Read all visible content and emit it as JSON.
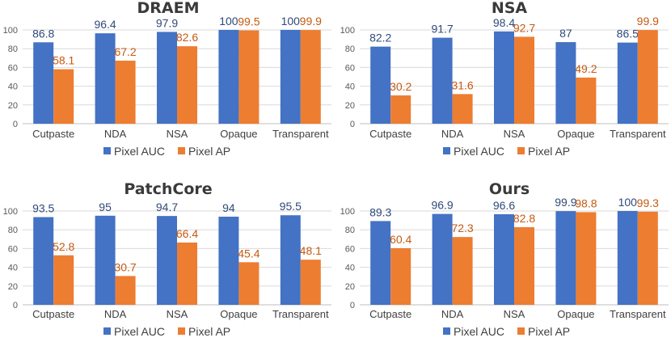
{
  "colors": {
    "auc": "#4472C4",
    "ap": "#ED7D31",
    "grid": "#d9d9d9",
    "axis": "#bfbfbf"
  },
  "chart_data": [
    {
      "type": "bar",
      "title": "DRAEM",
      "categories": [
        "Cutpaste",
        "NDA",
        "NSA",
        "Opaque",
        "Transparent"
      ],
      "ylim": [
        0,
        100
      ],
      "yticks": [
        0,
        20,
        40,
        60,
        80,
        100
      ],
      "legend_position": "bottom",
      "series": [
        {
          "name": "Pixel AUC",
          "values": [
            86.8,
            96.4,
            97.9,
            100,
            100
          ]
        },
        {
          "name": "Pixel AP",
          "values": [
            58.1,
            67.2,
            82.6,
            99.5,
            99.9
          ]
        }
      ]
    },
    {
      "type": "bar",
      "title": "NSA",
      "categories": [
        "Cutpaste",
        "NDA",
        "NSA",
        "Opaque",
        "Transparent"
      ],
      "ylim": [
        0,
        100
      ],
      "yticks": [
        0,
        20,
        40,
        60,
        80,
        100
      ],
      "legend_position": "bottom",
      "series": [
        {
          "name": "Pixel AUC",
          "values": [
            82.2,
            91.7,
            98.4,
            87,
            86.5
          ]
        },
        {
          "name": "Pixel AP",
          "values": [
            30.2,
            31.6,
            92.7,
            49.2,
            99.9
          ]
        }
      ]
    },
    {
      "type": "bar",
      "title": "PatchCore",
      "categories": [
        "Cutpaste",
        "NDA",
        "NSA",
        "Opaque",
        "Transparent"
      ],
      "ylim": [
        0,
        100
      ],
      "yticks": [
        0,
        20,
        40,
        60,
        80,
        100
      ],
      "legend_position": "bottom",
      "series": [
        {
          "name": "Pixel AUC",
          "values": [
            93.5,
            95,
            94.7,
            94,
            95.5
          ]
        },
        {
          "name": "Pixel AP",
          "values": [
            52.8,
            30.7,
            66.4,
            45.4,
            48.1
          ]
        }
      ]
    },
    {
      "type": "bar",
      "title": "Ours",
      "categories": [
        "Cutpaste",
        "NDA",
        "NSA",
        "Opaque",
        "Transparent"
      ],
      "ylim": [
        0,
        100
      ],
      "yticks": [
        0,
        20,
        40,
        60,
        80,
        100
      ],
      "legend_position": "bottom",
      "series": [
        {
          "name": "Pixel AUC",
          "values": [
            89.3,
            96.9,
            96.6,
            99.9,
            100
          ]
        },
        {
          "name": "Pixel AP",
          "values": [
            60.4,
            72.3,
            82.8,
            98.8,
            99.3
          ]
        }
      ]
    }
  ]
}
